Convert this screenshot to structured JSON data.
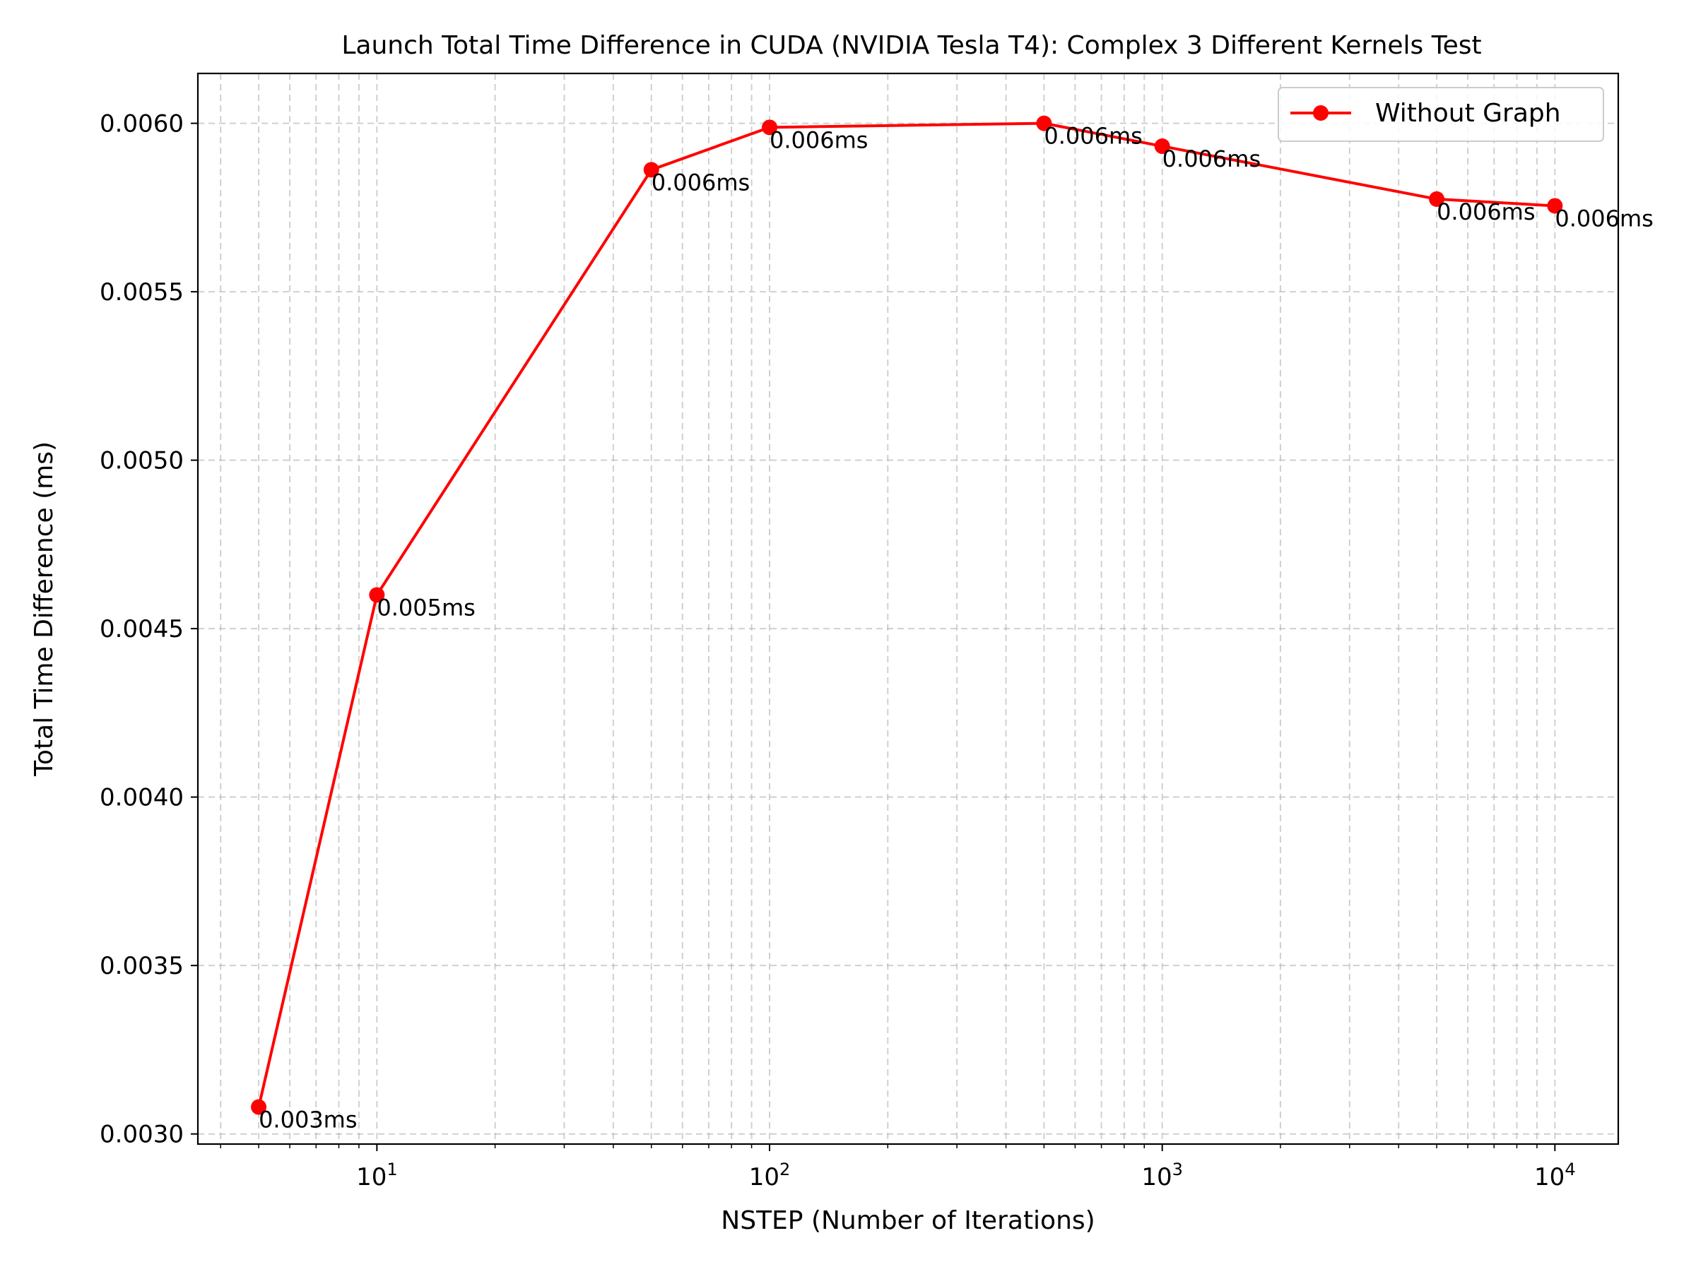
{
  "chart_data": {
    "type": "line",
    "title": "Launch Total Time Difference in CUDA (NVIDIA Tesla T4): Complex 3 Different Kernels Test",
    "xlabel": "NSTEP (Number of Iterations)",
    "ylabel": "Total Time Difference (ms)",
    "x_scale": "log",
    "xlim": [
      3.5,
      14500
    ],
    "ylim": [
      0.00297,
      0.006148
    ],
    "grid": true,
    "grid_style": "dashed",
    "legend_position": "top-right",
    "x_ticks": [
      {
        "value": 10,
        "base": "10",
        "exp": "1"
      },
      {
        "value": 100,
        "base": "10",
        "exp": "2"
      },
      {
        "value": 1000,
        "base": "10",
        "exp": "3"
      },
      {
        "value": 10000,
        "base": "10",
        "exp": "4"
      }
    ],
    "y_ticks": [
      {
        "value": 0.003,
        "label": "0.0030"
      },
      {
        "value": 0.0035,
        "label": "0.0035"
      },
      {
        "value": 0.004,
        "label": "0.0040"
      },
      {
        "value": 0.0045,
        "label": "0.0045"
      },
      {
        "value": 0.005,
        "label": "0.0050"
      },
      {
        "value": 0.0055,
        "label": "0.0055"
      },
      {
        "value": 0.006,
        "label": "0.0060"
      }
    ],
    "series": [
      {
        "name": "Without Graph",
        "color": "#ff0000",
        "marker": "circle",
        "x": [
          5,
          10,
          50,
          100,
          500,
          1000,
          5000,
          10000
        ],
        "y": [
          0.00308,
          0.0046,
          0.005862,
          0.005988,
          0.006,
          0.005932,
          0.005775,
          0.005755
        ],
        "point_labels": [
          "0.003ms",
          "0.005ms",
          "0.006ms",
          "0.006ms",
          "0.006ms",
          "0.006ms",
          "0.006ms",
          "0.006ms"
        ]
      }
    ]
  }
}
